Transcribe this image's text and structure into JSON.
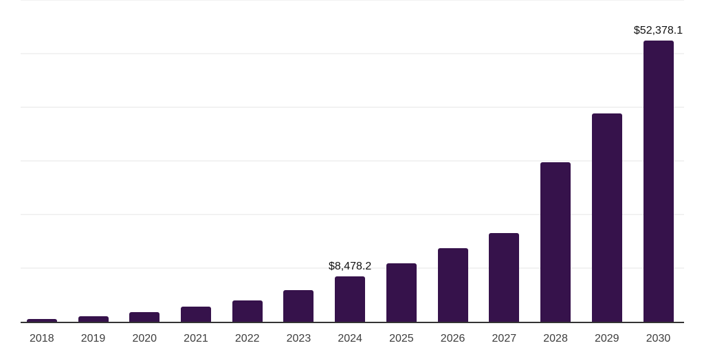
{
  "chart_data": {
    "type": "bar",
    "title": "",
    "xlabel": "",
    "ylabel": "",
    "categories": [
      "2018",
      "2019",
      "2020",
      "2021",
      "2022",
      "2023",
      "2024",
      "2025",
      "2026",
      "2027",
      "2028",
      "2029",
      "2030"
    ],
    "values": [
      500,
      1030,
      1800,
      2820,
      3980,
      5900,
      8478.2,
      10940,
      13760,
      16560,
      29790,
      38900,
      52378.1
    ],
    "point_labels": [
      "",
      "",
      "",
      "",
      "",
      "",
      "$8,478.2",
      "",
      "",
      "",
      "",
      "",
      "$52,378.1"
    ],
    "ylim": [
      0,
      60000
    ],
    "gridline_step": 10000,
    "grid": "horizontal-light",
    "legend": "none",
    "colors": {
      "bar": "#36124B",
      "gridline": "#F2F2F2",
      "axis_line": "#333333",
      "tick_label": "#3D3D3D",
      "data_label": "#111111",
      "background": "#FFFFFF"
    }
  }
}
